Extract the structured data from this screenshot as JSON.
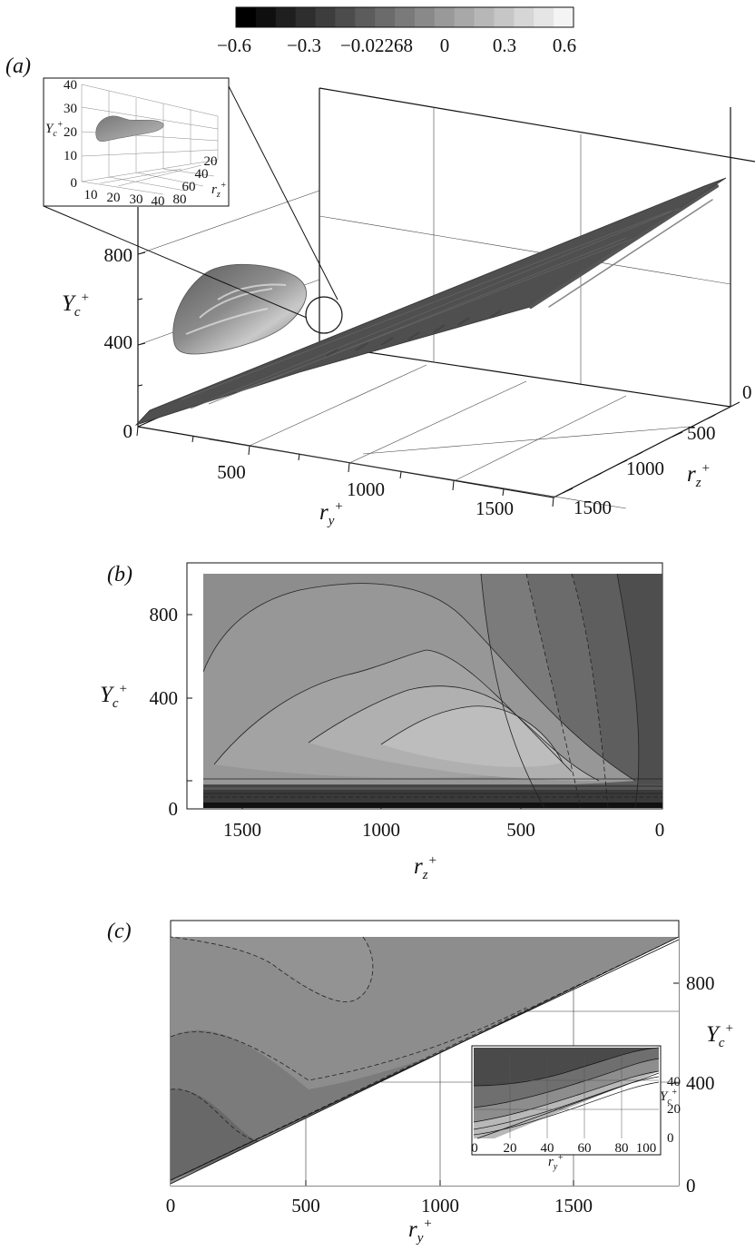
{
  "colorbar": {
    "tick_labels": [
      "−0.6",
      "−0.3",
      "−0.02268",
      "0",
      "0.3",
      "0.6"
    ],
    "levels": 17,
    "dark_color": "#000000",
    "light_color": "#f4f4f4"
  },
  "panels": [
    {
      "label": "(a)",
      "inset": {
        "y_ticks": [
          "40",
          "30",
          "20",
          "10",
          "0"
        ],
        "y_label": "Y",
        "y_label_sub": "c",
        "y_label_sup": "+",
        "x_ticks": [
          "10",
          "20",
          "30",
          "40"
        ],
        "z_ticks": [
          "80",
          "60",
          "40",
          "20"
        ],
        "z_label": "r",
        "z_label_sub": "z",
        "z_label_sup": "+"
      },
      "y_ticks": [
        "800",
        "400",
        "0"
      ],
      "y_label": "Y",
      "y_label_sub": "c",
      "y_label_sup": "+",
      "x_ticks": [
        "500",
        "1000",
        "1500"
      ],
      "x_label": "r",
      "x_label_sub": "y",
      "x_label_sup": "+",
      "z_ticks": [
        "0",
        "500",
        "1000",
        "1500"
      ],
      "z_label": "r",
      "z_label_sub": "z",
      "z_label_sup": "+"
    },
    {
      "label": "(b)",
      "y_ticks": [
        "800",
        "400",
        "0"
      ],
      "y_label": "Y",
      "y_label_sub": "c",
      "y_label_sup": "+",
      "x_ticks": [
        "1500",
        "1000",
        "500",
        "0"
      ],
      "x_label": "r",
      "x_label_sub": "z",
      "x_label_sup": "+"
    },
    {
      "label": "(c)",
      "y_ticks": [
        "800",
        "400",
        "0"
      ],
      "y_label": "Y",
      "y_label_sub": "c",
      "y_label_sup": "+",
      "x_ticks": [
        "0",
        "500",
        "1000",
        "1500"
      ],
      "x_label": "r",
      "x_label_sub": "y",
      "x_label_sup": "+",
      "inset": {
        "x_ticks": [
          "0",
          "20",
          "40",
          "60",
          "80",
          "100"
        ],
        "y_ticks": [
          "40",
          "20",
          "0"
        ],
        "x_label": "r",
        "x_label_sub": "y",
        "x_label_sup": "+",
        "y_label": "Y",
        "y_label_sub": "c",
        "y_label_sup": "+"
      }
    }
  ]
}
